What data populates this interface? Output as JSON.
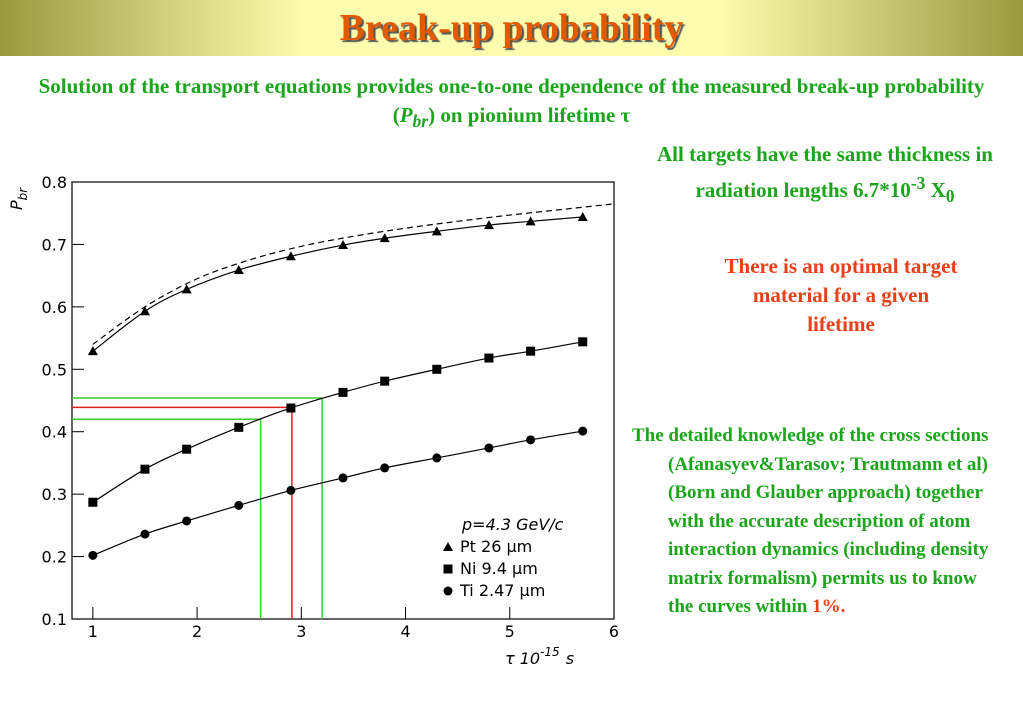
{
  "header": {
    "title": "Break-up probability"
  },
  "intro": {
    "before": "Solution of the transport equations provides one-to-one dependence of the measured break-up probability (",
    "symbol": "P",
    "symbol_sub": "br",
    "after": ") on pionium lifetime τ"
  },
  "targets_note": {
    "text": "All targets have the same thickness in radiation lengths 6.7*10",
    "exponent": "-3",
    "unit": " X",
    "unit_sub": "0"
  },
  "optimal_note": "There is an optimal target material for a given lifetime",
  "knowledge_note": {
    "text": "The detailed knowledge of the cross sections (Afanasyev&Tarasov; Trautmann et al) (Born and Glauber approach) together with the accurate description of atom interaction dynamics (including density matrix formalism) permits us to know the curves within ",
    "highlight": "1%."
  },
  "chart_data": {
    "type": "line",
    "y_label": {
      "main": "P",
      "sub": "br"
    },
    "x_label": {
      "main": "τ 10",
      "exponent": "-15",
      "unit": "s"
    },
    "legend_title": "p=4.3 GeV/c",
    "legend": "lower-right",
    "x": [
      1,
      1.5,
      1.9,
      2.4,
      2.9,
      3.4,
      3.8,
      4.3,
      4.8,
      5.2,
      5.7
    ],
    "series": [
      {
        "name": "Pt 26  μm",
        "color": "#000000",
        "marker": "triangle",
        "values": [
          0.529,
          0.593,
          0.628,
          0.659,
          0.681,
          0.699,
          0.71,
          0.721,
          0.731,
          0.737,
          0.744
        ]
      },
      {
        "name": "Ni 9.4  μm",
        "color": "#000000",
        "marker": "square",
        "values": [
          0.287,
          0.34,
          0.372,
          0.407,
          0.438,
          0.463,
          0.481,
          0.5,
          0.518,
          0.529,
          0.544
        ]
      },
      {
        "name": "Ti 2.47  μm",
        "color": "#000000",
        "marker": "circle",
        "values": [
          0.202,
          0.236,
          0.257,
          0.282,
          0.306,
          0.326,
          0.342,
          0.358,
          0.374,
          0.387,
          0.401
        ]
      },
      {
        "color": "#000000",
        "dashed": true,
        "x": [
          1,
          1.5,
          2,
          2.5,
          3,
          3.5,
          4,
          4.5,
          5,
          5.5,
          6
        ],
        "values": [
          0.54,
          0.6,
          0.645,
          0.675,
          0.697,
          0.713,
          0.726,
          0.737,
          0.747,
          0.756,
          0.765
        ]
      }
    ],
    "reference_lines": [
      {
        "x": 2.61,
        "y": 0.42,
        "color": "#33cc33"
      },
      {
        "x": 2.91,
        "y": 0.439,
        "color": "#dd2222"
      },
      {
        "x": 3.2,
        "y": 0.454,
        "color": "#33cc33"
      }
    ],
    "xlim": [
      0.8,
      6
    ],
    "ylim": [
      0.1,
      0.8
    ],
    "xticks": [
      1,
      2,
      3,
      4,
      5,
      6
    ],
    "yticks": [
      0.1,
      0.2,
      0.3,
      0.4,
      0.5,
      0.6,
      0.7,
      0.8
    ]
  }
}
